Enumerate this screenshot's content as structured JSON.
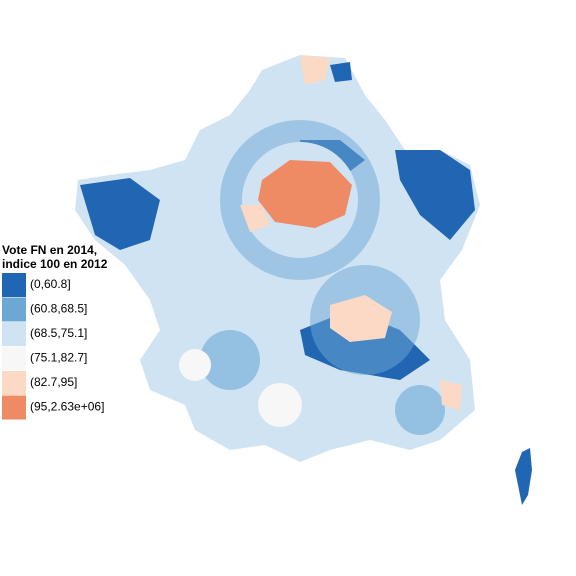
{
  "legend": {
    "title_lines": [
      "Vote FN en 2014,",
      "indice 100 en 2012"
    ],
    "items": [
      {
        "label": "(0,60.8]",
        "color": "#2166b3"
      },
      {
        "label": "(60.8,68.5]",
        "color": "#6da8d5"
      },
      {
        "label": "(68.5,75.1]",
        "color": "#d0e3f3"
      },
      {
        "label": "(75.1,82.7]",
        "color": "#f7f7f7"
      },
      {
        "label": "(82.7,95]",
        "color": "#fcd9c5"
      },
      {
        "label": "(95,2.63e+06]",
        "color": "#ee8b64"
      }
    ]
  }
}
